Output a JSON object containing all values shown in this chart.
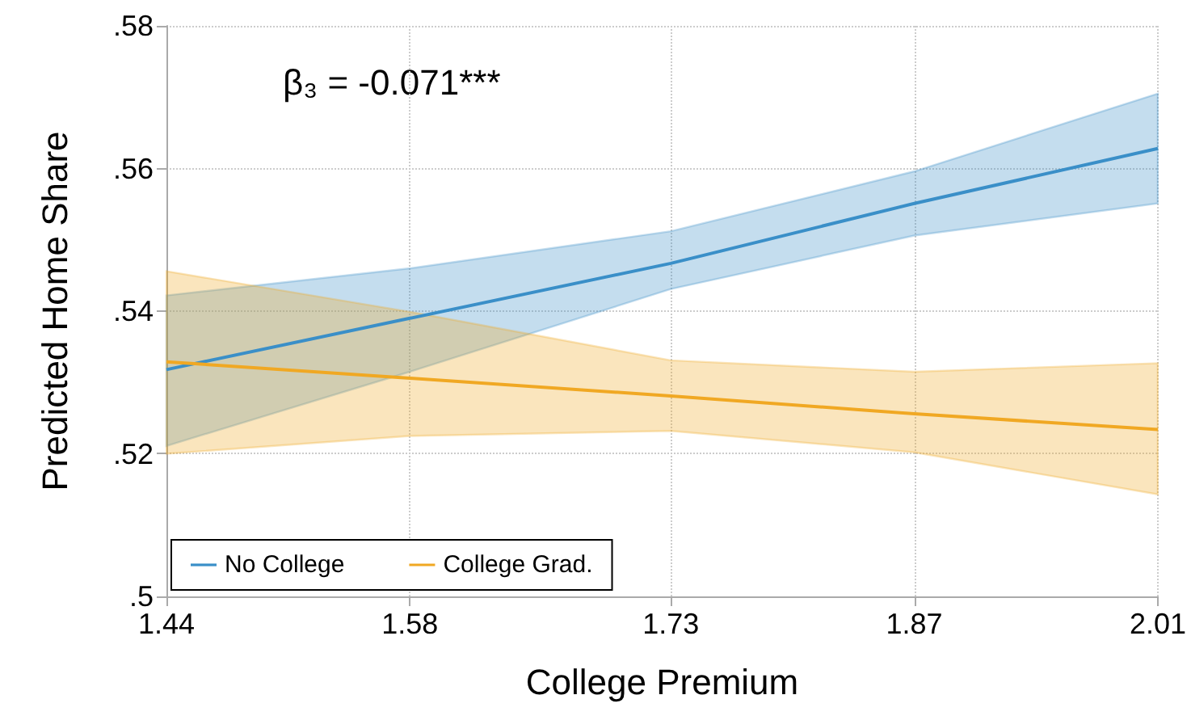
{
  "chart_data": {
    "type": "line",
    "xlabel": "College Premium",
    "ylabel": "Predicted Home Share",
    "annotations": [
      "β₃ = -0.071***"
    ],
    "x": [
      1.44,
      1.58,
      1.73,
      1.87,
      2.01
    ],
    "series": [
      {
        "name": "No College",
        "color": "#3a8fc8",
        "values": [
          0.5318,
          0.539,
          0.5467,
          0.5551,
          0.5628
        ],
        "lower": [
          0.5211,
          0.5315,
          0.5431,
          0.5506,
          0.5551
        ],
        "upper": [
          0.5422,
          0.546,
          0.5512,
          0.5596,
          0.5705
        ]
      },
      {
        "name": "College Grad.",
        "color": "#f0a823",
        "values": [
          0.5329,
          0.5306,
          0.5281,
          0.5256,
          0.5234
        ],
        "lower": [
          0.52,
          0.5225,
          0.5232,
          0.5202,
          0.5143
        ],
        "upper": [
          0.5456,
          0.5399,
          0.5331,
          0.5315,
          0.5327
        ]
      }
    ],
    "xlim": [
      1.44,
      2.01
    ],
    "xticks": [
      1.44,
      1.58,
      1.73,
      1.87,
      2.01
    ],
    "ylim": [
      0.5,
      0.58
    ],
    "yticks": [
      {
        "value": 0.5,
        "label": ".5"
      },
      {
        "value": 0.52,
        "label": ".52"
      },
      {
        "value": 0.54,
        "label": ".54"
      },
      {
        "value": 0.56,
        "label": ".56"
      },
      {
        "value": 0.58,
        "label": ".58"
      }
    ],
    "grid": true,
    "legend": "bottom left",
    "marker": "none",
    "line_style": "solid"
  }
}
